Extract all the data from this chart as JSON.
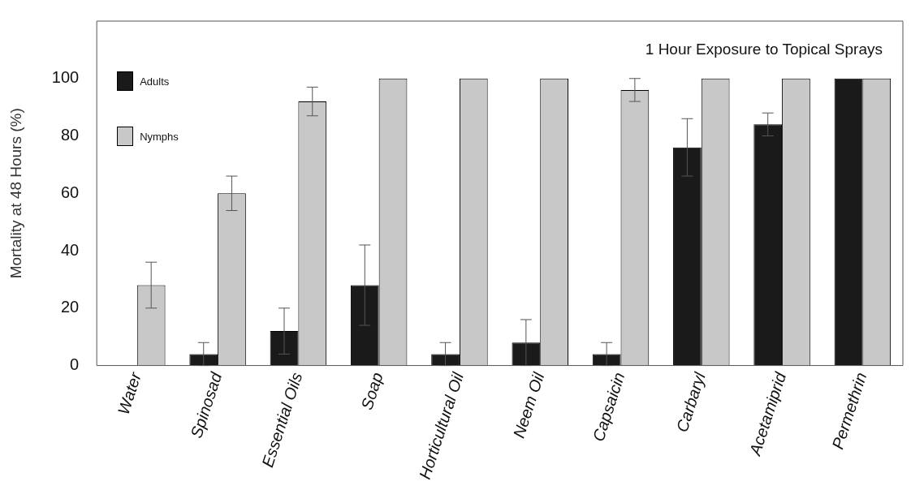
{
  "chart_data": {
    "type": "bar",
    "title": "1 Hour Exposure to Topical Sprays",
    "ylabel": "Mortality at 48 Hours (%)",
    "categories": [
      "Water",
      "Spinosad",
      "Essential Oils",
      "Soap",
      "Horticultural Oil",
      "Neem Oil",
      "Capsaicin",
      "Carbaryl",
      "Acetamiprid",
      "Permethrin"
    ],
    "series": [
      {
        "name": "Adults",
        "color": "#1a1a1a",
        "values": [
          0,
          4,
          12,
          28,
          4,
          8,
          4,
          76,
          84,
          100
        ],
        "errors": [
          null,
          4,
          8,
          14,
          4,
          8,
          4,
          10,
          4,
          null
        ]
      },
      {
        "name": "Nymphs",
        "color": "#c8c8c8",
        "values": [
          28,
          60,
          92,
          100,
          100,
          100,
          96,
          100,
          100,
          100
        ],
        "errors": [
          8,
          6,
          5,
          null,
          null,
          null,
          4,
          null,
          null,
          null
        ]
      }
    ],
    "ylim": [
      0,
      120
    ],
    "yticks": [
      0,
      20,
      40,
      60,
      80,
      100
    ],
    "grid": false,
    "legend": "top left"
  }
}
